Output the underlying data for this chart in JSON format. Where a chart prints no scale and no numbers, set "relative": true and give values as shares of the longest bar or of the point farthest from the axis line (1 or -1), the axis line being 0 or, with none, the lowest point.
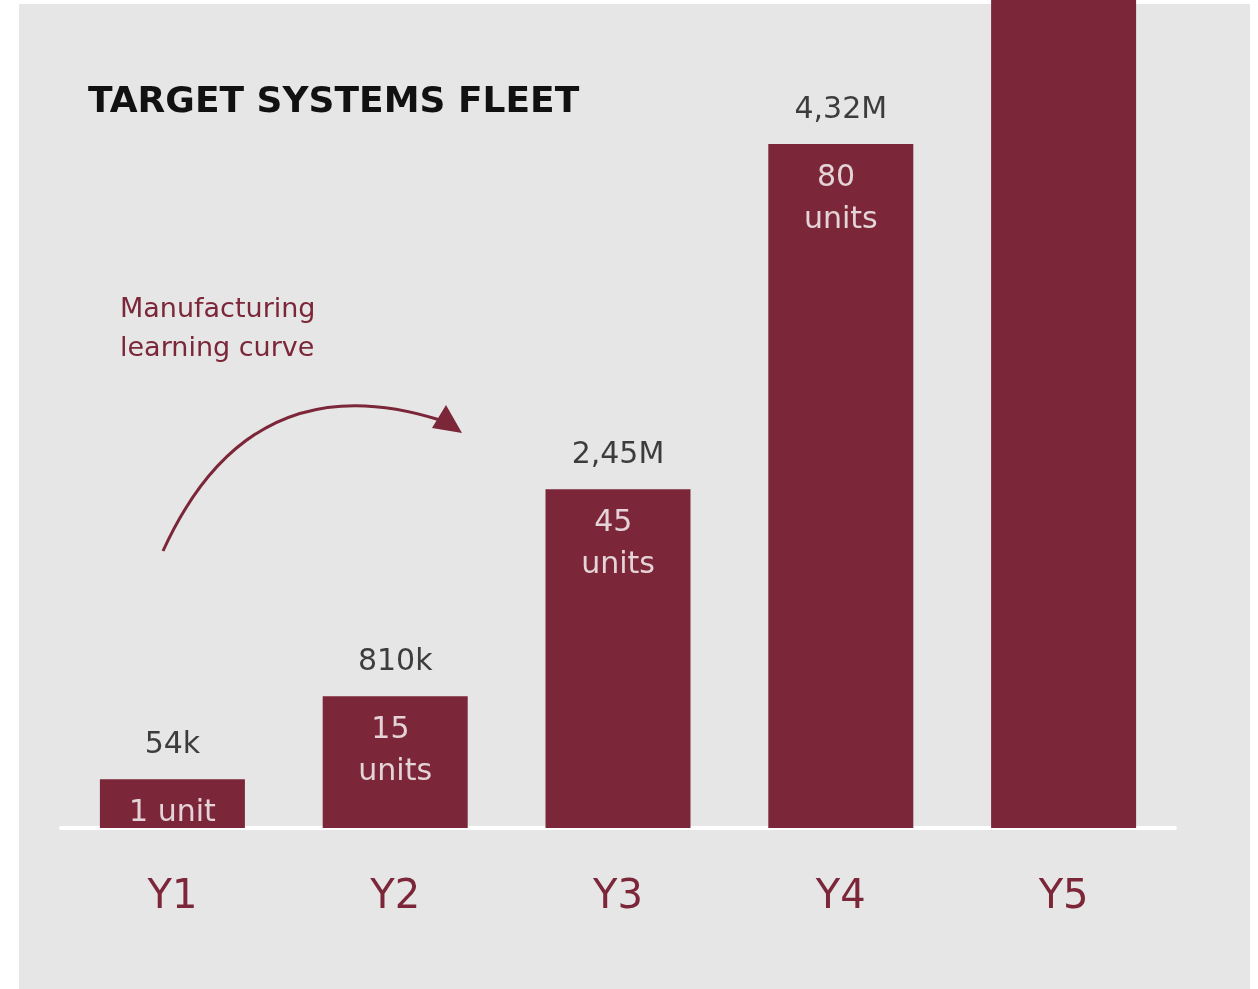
{
  "chart_data": {
    "type": "bar",
    "title": "TARGET SYSTEMS FLEET",
    "relative": true,
    "categories": [
      "Y1",
      "Y2",
      "Y3",
      "Y4",
      "Y5"
    ],
    "values": [
      0.059,
      0.159,
      0.409,
      0.826,
      1
    ],
    "color": "#7b2639",
    "annotations": [
      {
        "text": "54k",
        "x": "Y1",
        "y": 0.059
      },
      {
        "text": "810k",
        "x": "Y2",
        "y": 0.159
      },
      {
        "text": "2,45M",
        "x": "Y3",
        "y": 0.409
      },
      {
        "text": "4,32M",
        "x": "Y4",
        "y": 0.826
      },
      {
        "text": "1 unit",
        "x": "Y1",
        "y": 0.059
      },
      {
        "text": "15 units",
        "x": "Y2",
        "y": 0.159
      },
      {
        "text": "45 units",
        "x": "Y3",
        "y": 0.409
      },
      {
        "text": "80 units",
        "x": "Y4",
        "y": 0.826
      },
      "Manufacturing learning curve"
    ]
  }
}
